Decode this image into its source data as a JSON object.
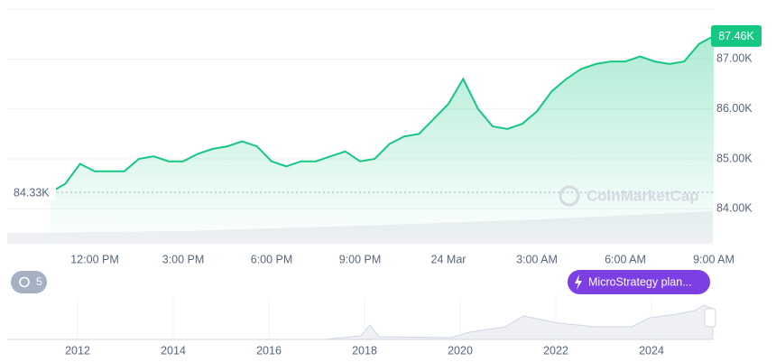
{
  "chart_data": {
    "type": "line",
    "categories": [
      null,
      null,
      null,
      "12:00 PM",
      null,
      null,
      null,
      null,
      null,
      "3:00 PM",
      null,
      null,
      null,
      null,
      null,
      "6:00 PM",
      null,
      null,
      null,
      null,
      null,
      "9:00 PM",
      null,
      null,
      null,
      null,
      null,
      "24 Mar",
      null,
      null,
      null,
      null,
      null,
      "3:00 AM",
      null,
      null,
      null,
      null,
      null,
      "6:00 AM",
      null,
      null,
      null,
      null,
      null,
      "9:00 AM"
    ],
    "series": [
      {
        "color": "#16c784",
        "values": [
          84330,
          84500,
          84900,
          84750,
          84750,
          84750,
          85000,
          85050,
          84950,
          84950,
          85100,
          85200,
          85250,
          85350,
          85250,
          84950,
          84850,
          84950,
          84950,
          85050,
          85150,
          84950,
          85000,
          85300,
          85450,
          85500,
          85800,
          86100,
          86600,
          86000,
          85650,
          85600,
          85700,
          85950,
          86350,
          86600,
          86800,
          86900,
          86950,
          86950,
          87050,
          86950,
          86900,
          86950,
          87300,
          87460
        ]
      }
    ],
    "last_price_label": "87.46K",
    "baseline": {
      "value": 84330,
      "label": "84.33K"
    },
    "ylim": [
      83300,
      88000
    ],
    "yticks": [
      {
        "value": 84000,
        "label": "84.00K"
      },
      {
        "value": 85000,
        "label": "85.00K"
      },
      {
        "value": 86000,
        "label": "86.00K"
      },
      {
        "value": 87000,
        "label": "87.00K"
      }
    ],
    "grid": true,
    "watermark": "CoinMarketCap",
    "history_badge": "5",
    "annotation": "MicroStrategy plan...",
    "navigator_labels": [
      "2012",
      "2014",
      "2016",
      "2018",
      "2020",
      "2022",
      "2024"
    ]
  }
}
